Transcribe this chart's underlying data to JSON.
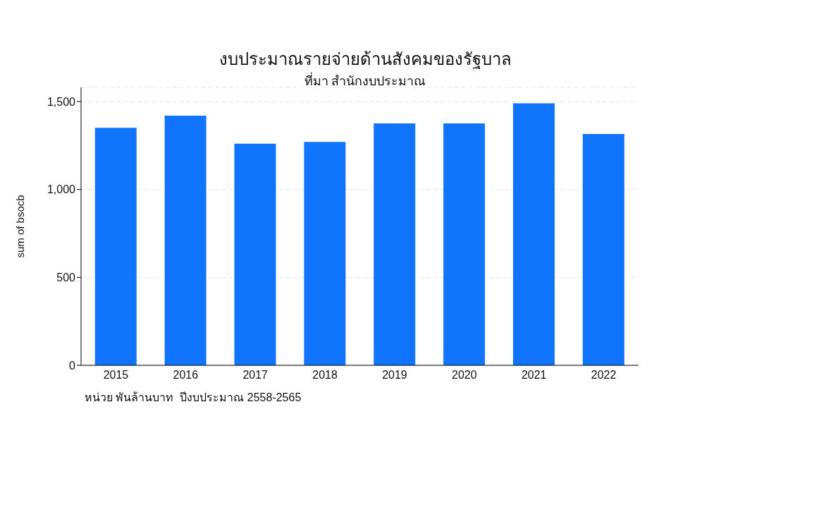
{
  "chart_data": {
    "type": "bar",
    "title": "งบประมาณรายจ่ายด้านสังคมของรัฐบาล",
    "subtitle": "ที่มา สำนักงบประมาณ",
    "ylabel": "sum of bsocb",
    "annotations": [
      "หน่วย พันล้านบาท  ปีงบประมาณ 2558-2565"
    ],
    "categories": [
      "2015",
      "2016",
      "2017",
      "2018",
      "2019",
      "2020",
      "2021",
      "2022"
    ],
    "values": [
      1350,
      1420,
      1260,
      1270,
      1375,
      1375,
      1490,
      1315
    ],
    "color": "#1174fc",
    "ylim": [
      0,
      1580
    ],
    "yticks": [
      {
        "value": 0,
        "label": "0"
      },
      {
        "value": 500,
        "label": "500"
      },
      {
        "value": 1000,
        "label": "1,000"
      },
      {
        "value": 1500,
        "label": "1,500"
      }
    ],
    "grid": "y",
    "legend": false
  }
}
